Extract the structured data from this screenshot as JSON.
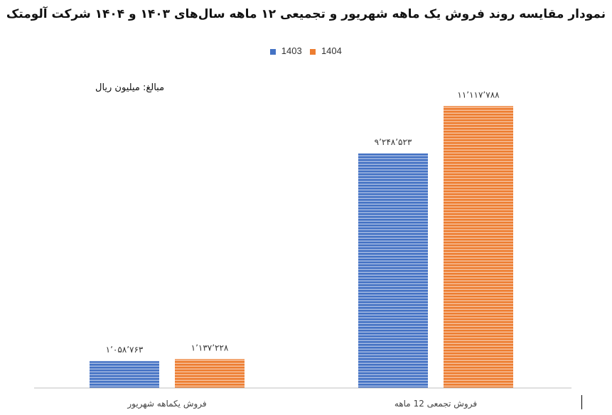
{
  "chart_data": {
    "type": "bar",
    "title": "نمودار مقایسه روند فروش یک ماهه شهریور و تجمیعی ۱۲ ماهه سال‌های ۱۴۰۳ و ۱۴۰۴ شرکت آلومتک",
    "unit_note": "مبالغ: میلیون ریال",
    "categories": [
      "فروش یکماهه شهریور",
      "فروش تجمعی 12 ماهه"
    ],
    "series": [
      {
        "name": "1403",
        "color": "#4472C4",
        "values": [
          1058763,
          9248523
        ],
        "labels": [
          "۱٬۰۵۸٬۷۶۳",
          "۹٬۲۴۸٬۵۲۳"
        ]
      },
      {
        "name": "1404",
        "color": "#ED7D31",
        "values": [
          1137228,
          11117788
        ],
        "labels": [
          "۱٬۱۳۷٬۲۲۸",
          "۱۱٬۱۱۷٬۷۸۸"
        ]
      }
    ],
    "ylim": [
      0,
      12500000
    ],
    "grid": false,
    "legend_position": "top"
  }
}
